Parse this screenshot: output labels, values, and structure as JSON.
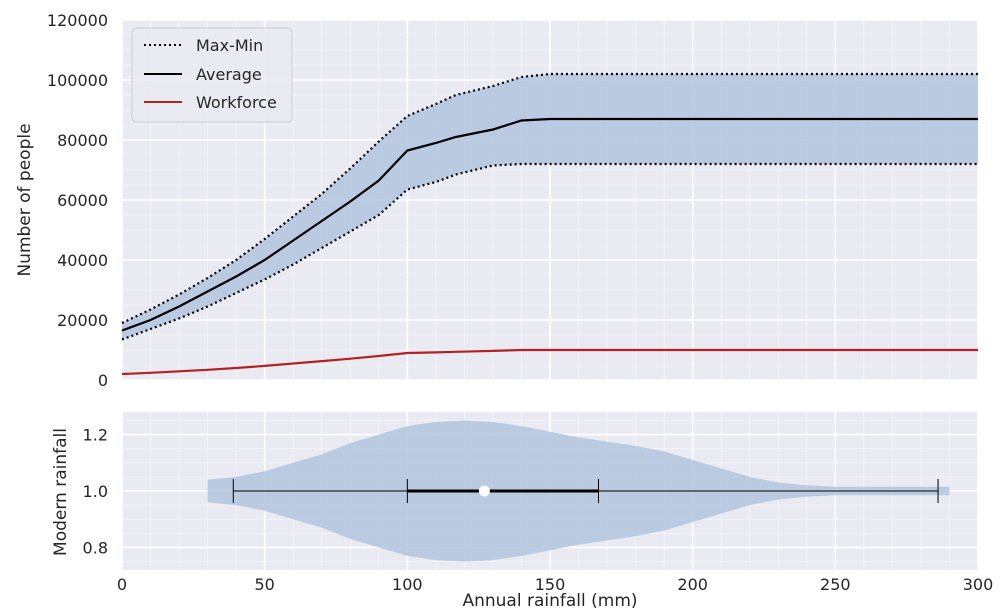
{
  "chart_data": [
    {
      "type": "line",
      "ylabel": "Number of people",
      "xlim": [
        0,
        300
      ],
      "ylim": [
        0,
        120000
      ],
      "yticks": [
        0,
        20000,
        40000,
        60000,
        80000,
        100000,
        120000
      ],
      "grid": true,
      "legend_position": "top-left",
      "x": [
        0,
        10,
        20,
        30,
        40,
        50,
        60,
        70,
        80,
        90,
        100,
        110,
        117,
        130,
        140,
        150,
        160,
        170,
        180,
        190,
        200,
        210,
        220,
        230,
        240,
        250,
        260,
        270,
        280,
        290,
        300
      ],
      "series": [
        {
          "name": "Max-Min",
          "style": "dotted",
          "color": "#000000",
          "values": [
            19000,
            23500,
            28500,
            34000,
            40000,
            47000,
            54500,
            62000,
            70500,
            79500,
            88000,
            92000,
            95000,
            98000,
            101000,
            102000,
            102000,
            102000,
            102000,
            102000,
            102000,
            102000,
            102000,
            102000,
            102000,
            102000,
            102000,
            102000,
            102000,
            102000,
            102000
          ],
          "lower": [
            13500,
            17000,
            20500,
            24500,
            29000,
            33500,
            38500,
            44000,
            49500,
            55000,
            63500,
            66000,
            68500,
            71500,
            72000,
            72000,
            72000,
            72000,
            72000,
            72000,
            72000,
            72000,
            72000,
            72000,
            72000,
            72000,
            72000,
            72000,
            72000,
            72000,
            72000
          ]
        },
        {
          "name": "Average",
          "style": "solid",
          "color": "#000000",
          "values": [
            16500,
            20000,
            24500,
            29500,
            34500,
            40000,
            46500,
            53000,
            59500,
            66500,
            76500,
            79000,
            81000,
            83500,
            86500,
            87000,
            87000,
            87000,
            87000,
            87000,
            87000,
            87000,
            87000,
            87000,
            87000,
            87000,
            87000,
            87000,
            87000,
            87000,
            87000
          ]
        },
        {
          "name": "Workforce",
          "style": "solid",
          "color": "#b22222",
          "values": [
            2000,
            2400,
            2900,
            3400,
            4000,
            4700,
            5500,
            6300,
            7100,
            8000,
            9000,
            9200,
            9400,
            9700,
            10000,
            10000,
            10000,
            10000,
            10000,
            10000,
            10000,
            10000,
            10000,
            10000,
            10000,
            10000,
            10000,
            10000,
            10000,
            10000,
            10000
          ]
        }
      ],
      "fill_color": "#b0c4de"
    },
    {
      "type": "violin",
      "orientation": "horizontal",
      "xlabel": "Annual rainfall (mm)",
      "ylabel": "Modern rainfall",
      "xlim": [
        0,
        300
      ],
      "ylim": [
        0.72,
        1.28
      ],
      "xticks": [
        0,
        50,
        100,
        150,
        200,
        250,
        300
      ],
      "yticks": [
        0.8,
        1.0,
        1.2
      ],
      "ytick_labels": [
        "0.8",
        "1.0",
        "1.2"
      ],
      "center": 1.0,
      "half_width_profile": {
        "x": [
          30,
          40,
          50,
          60,
          70,
          80,
          90,
          100,
          110,
          120,
          130,
          140,
          150,
          160,
          170,
          180,
          190,
          200,
          210,
          220,
          230,
          240,
          250,
          260,
          270,
          280,
          290
        ],
        "w": [
          0.04,
          0.05,
          0.07,
          0.1,
          0.13,
          0.17,
          0.2,
          0.23,
          0.245,
          0.25,
          0.245,
          0.23,
          0.21,
          0.19,
          0.175,
          0.16,
          0.14,
          0.11,
          0.08,
          0.05,
          0.03,
          0.02,
          0.015,
          0.015,
          0.015,
          0.015,
          0.015
        ]
      },
      "whisker_min": 39,
      "q1": 100,
      "median": 127,
      "q3": 167,
      "whisker_max": 286,
      "fill_color": "#b0c4de"
    }
  ]
}
